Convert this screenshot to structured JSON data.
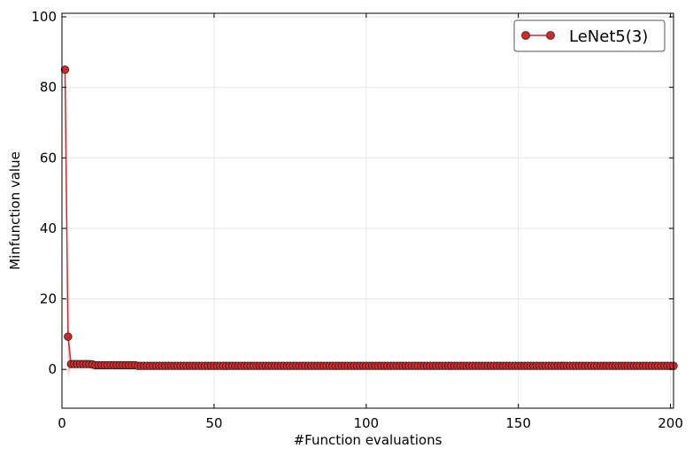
{
  "chart_data": {
    "type": "line",
    "xlabel": "#Function evaluations",
    "ylabel": "Minfunction value",
    "xlim": [
      0,
      201
    ],
    "ylim": [
      -11,
      101
    ],
    "x_ticks": [
      0,
      50,
      100,
      150,
      200
    ],
    "y_ticks": [
      0,
      20,
      40,
      60,
      80,
      100
    ],
    "grid": true,
    "legend_position": "top-right",
    "series": [
      {
        "name": "LeNet5(3)",
        "color": "#d62728",
        "marker": "circle",
        "x_start": 1,
        "x_end": 201,
        "y_head": [
          85,
          9.3,
          1.5,
          1.5,
          1.5,
          1.5,
          1.5,
          1.5,
          1.5,
          1.4,
          1.2,
          1.2,
          1.2,
          1.2,
          1.2,
          1.2,
          1.2,
          1.2,
          1.2,
          1.2,
          1.2,
          1.2,
          1.2,
          1.2
        ],
        "y_tail": 1.0,
        "band_upper_head": [
          91.5,
          15.5
        ],
        "band_lower_head": [
          78.5,
          -2.5
        ]
      }
    ]
  }
}
